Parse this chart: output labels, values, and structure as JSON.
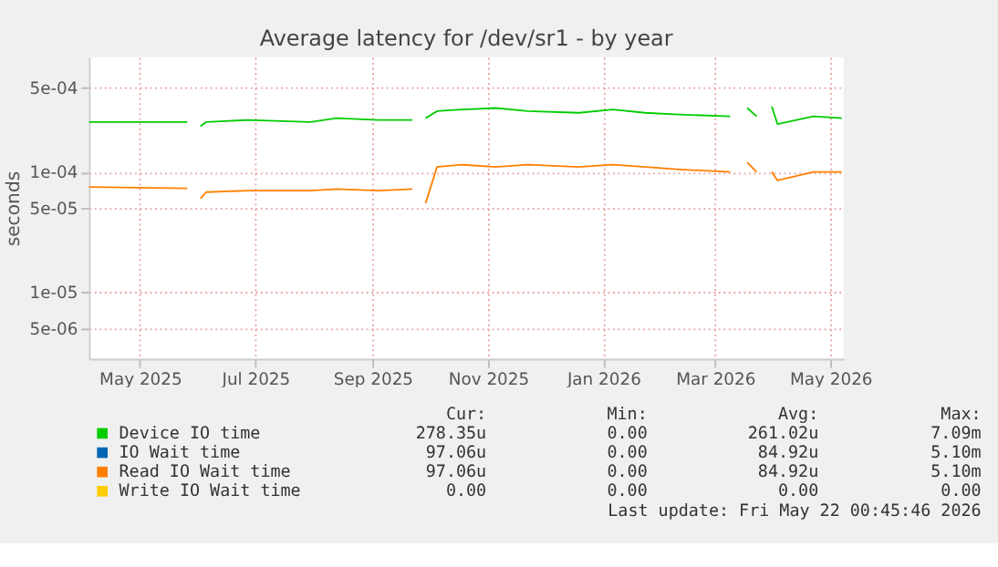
{
  "chart_data": {
    "type": "line",
    "title": "Average latency for /dev/sr1 - by year",
    "ylabel": "seconds",
    "x": [
      "2025-04-18",
      "2025-06-09",
      "2025-06-10",
      "2025-06-15",
      "2025-06-16",
      "2025-06-19",
      "2025-07-11",
      "2025-08-13",
      "2025-08-27",
      "2025-09-18",
      "2025-10-06",
      "2025-10-07",
      "2025-10-12",
      "2025-10-13",
      "2025-10-19",
      "2025-11-01",
      "2025-11-19",
      "2025-12-06",
      "2026-01-02",
      "2026-01-20",
      "2026-02-06",
      "2026-02-24",
      "2026-03-23",
      "2026-03-24",
      "2026-03-30",
      "2026-04-01",
      "2026-04-06",
      "2026-04-08",
      "2026-04-12",
      "2026-04-14",
      "2026-04-17",
      "2026-05-06",
      "2026-05-21"
    ],
    "series": [
      {
        "name": "Device IO time",
        "color": "#00cc00",
        "values": [
          0.00026,
          0.00026,
          null,
          null,
          0.00024,
          0.00026,
          0.00027,
          0.00026,
          0.00028,
          0.00027,
          0.00027,
          null,
          null,
          0.00028,
          0.00032,
          0.00033,
          0.00034,
          0.00032,
          0.00031,
          0.00033,
          0.00031,
          0.0003,
          0.00029,
          null,
          null,
          0.00034,
          0.00029,
          null,
          null,
          0.00035,
          0.00025,
          0.00029,
          0.00028
        ]
      },
      {
        "name": "IO Wait time",
        "color": "#0066b3",
        "values": [
          null,
          null,
          null,
          null,
          null,
          null,
          null,
          null,
          null,
          null,
          null,
          null,
          null,
          null,
          null,
          null,
          null,
          null,
          null,
          null,
          null,
          null,
          null,
          null,
          null,
          null,
          null,
          null,
          null,
          null,
          null,
          null,
          null
        ]
      },
      {
        "name": "Read IO Wait time",
        "color": "#ff8000",
        "values": [
          7.5e-05,
          7.3e-05,
          null,
          null,
          6e-05,
          6.8e-05,
          7e-05,
          7e-05,
          7.2e-05,
          7e-05,
          7.2e-05,
          null,
          null,
          5.5e-05,
          0.00011,
          0.000115,
          0.00011,
          0.000115,
          0.00011,
          0.000115,
          0.00011,
          0.000105,
          0.0001,
          null,
          null,
          0.00012,
          0.0001,
          null,
          null,
          0.0001,
          8.5e-05,
          0.0001,
          0.0001
        ]
      },
      {
        "name": "Write IO Wait time",
        "color": "#ffcc00",
        "values": [
          null,
          null,
          null,
          null,
          null,
          null,
          null,
          null,
          null,
          null,
          null,
          null,
          null,
          null,
          null,
          null,
          null,
          null,
          null,
          null,
          null,
          null,
          null,
          null,
          null,
          null,
          null,
          null,
          null,
          null,
          null,
          null,
          null
        ]
      }
    ],
    "xlim": [
      "2025-04-18",
      "2026-05-22"
    ],
    "xticks": [
      {
        "value": "2025-05-15",
        "label": "May 2025"
      },
      {
        "value": "2025-07-15",
        "label": "Jul 2025"
      },
      {
        "value": "2025-09-15",
        "label": "Sep 2025"
      },
      {
        "value": "2025-11-15",
        "label": "Nov 2025"
      },
      {
        "value": "2026-01-15",
        "label": "Jan 2026"
      },
      {
        "value": "2026-03-15",
        "label": "Mar 2026"
      },
      {
        "value": "2026-05-15",
        "label": "May 2026"
      }
    ],
    "ylim": [
      2.8e-06,
      0.0009
    ],
    "yticks": [
      {
        "value": 5e-06,
        "label": "5e-06"
      },
      {
        "value": 1e-05,
        "label": "1e-05"
      },
      {
        "value": 5e-05,
        "label": "5e-05"
      },
      {
        "value": 0.0001,
        "label": "1e-04"
      },
      {
        "value": 0.0005,
        "label": "5e-04"
      }
    ],
    "log": true,
    "grid": true,
    "legend": "bottom",
    "marker": "none",
    "line_style": "solid",
    "annotations": [
      "Cur:",
      "Min:",
      "Avg:",
      "Max:",
      "278.35u",
      "0.00",
      "261.02u",
      "7.09m",
      "97.06u",
      "0.00",
      "84.92u",
      "5.10m",
      "97.06u",
      "0.00",
      "84.92u",
      "5.10m",
      "0.00",
      "0.00",
      "0.00",
      "0.00",
      "Last update: Fri May 22 00:45:46 2026"
    ]
  }
}
